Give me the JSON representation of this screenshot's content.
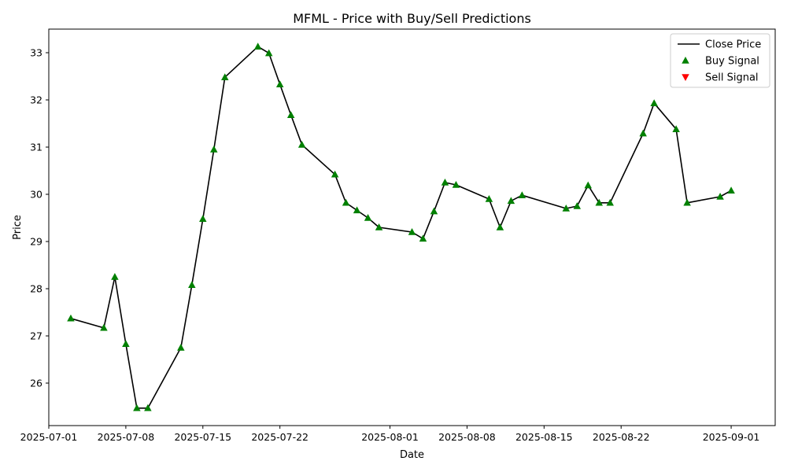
{
  "chart_data": {
    "type": "line",
    "title": "MFML - Price with Buy/Sell Predictions",
    "xlabel": "Date",
    "ylabel": "Price",
    "xlim": [
      "2025-07-01",
      "2025-09-05"
    ],
    "ylim": [
      25.1,
      33.5
    ],
    "grid": false,
    "legend_position": "top-right",
    "x_ticks": [
      "2025-07-01",
      "2025-07-08",
      "2025-07-15",
      "2025-07-22",
      "2025-08-01",
      "2025-08-08",
      "2025-08-15",
      "2025-08-22",
      "2025-09-01"
    ],
    "y_ticks": [
      26,
      27,
      28,
      29,
      30,
      31,
      32,
      33
    ],
    "colors": {
      "close": "#000000",
      "buy": "#008000",
      "sell": "#ff0000"
    },
    "series": [
      {
        "name": "Close Price",
        "kind": "line",
        "points": [
          [
            "2025-07-03",
            27.37
          ],
          [
            "2025-07-06",
            27.17
          ],
          [
            "2025-07-07",
            28.25
          ],
          [
            "2025-07-08",
            26.83
          ],
          [
            "2025-07-09",
            25.47
          ],
          [
            "2025-07-10",
            25.47
          ],
          [
            "2025-07-13",
            26.75
          ],
          [
            "2025-07-14",
            28.08
          ],
          [
            "2025-07-15",
            29.48
          ],
          [
            "2025-07-16",
            30.95
          ],
          [
            "2025-07-17",
            32.48
          ],
          [
            "2025-07-20",
            33.13
          ],
          [
            "2025-07-21",
            32.99
          ],
          [
            "2025-07-22",
            32.33
          ],
          [
            "2025-07-23",
            31.68
          ],
          [
            "2025-07-24",
            31.05
          ],
          [
            "2025-07-27",
            30.42
          ],
          [
            "2025-07-28",
            29.82
          ],
          [
            "2025-07-29",
            29.66
          ],
          [
            "2025-07-30",
            29.5
          ],
          [
            "2025-07-31",
            29.3
          ],
          [
            "2025-08-03",
            29.2
          ],
          [
            "2025-08-04",
            29.06
          ],
          [
            "2025-08-05",
            29.64
          ],
          [
            "2025-08-06",
            30.25
          ],
          [
            "2025-08-07",
            30.2
          ],
          [
            "2025-08-10",
            29.9
          ],
          [
            "2025-08-11",
            29.3
          ],
          [
            "2025-08-12",
            29.86
          ],
          [
            "2025-08-13",
            29.98
          ],
          [
            "2025-08-17",
            29.7
          ],
          [
            "2025-08-18",
            29.75
          ],
          [
            "2025-08-19",
            30.19
          ],
          [
            "2025-08-20",
            29.82
          ],
          [
            "2025-08-21",
            29.82
          ],
          [
            "2025-08-24",
            31.29
          ],
          [
            "2025-08-25",
            31.93
          ],
          [
            "2025-08-27",
            31.38
          ],
          [
            "2025-08-28",
            29.82
          ],
          [
            "2025-08-31",
            29.95
          ],
          [
            "2025-09-01",
            30.08
          ]
        ]
      },
      {
        "name": "Buy Signal",
        "kind": "marker-up",
        "points": [
          [
            "2025-07-03",
            27.37
          ],
          [
            "2025-07-06",
            27.17
          ],
          [
            "2025-07-07",
            28.25
          ],
          [
            "2025-07-08",
            26.83
          ],
          [
            "2025-07-09",
            25.47
          ],
          [
            "2025-07-10",
            25.47
          ],
          [
            "2025-07-13",
            26.75
          ],
          [
            "2025-07-14",
            28.08
          ],
          [
            "2025-07-15",
            29.48
          ],
          [
            "2025-07-16",
            30.95
          ],
          [
            "2025-07-17",
            32.48
          ],
          [
            "2025-07-20",
            33.13
          ],
          [
            "2025-07-21",
            32.99
          ],
          [
            "2025-07-22",
            32.33
          ],
          [
            "2025-07-23",
            31.68
          ],
          [
            "2025-07-24",
            31.05
          ],
          [
            "2025-07-27",
            30.42
          ],
          [
            "2025-07-28",
            29.82
          ],
          [
            "2025-07-29",
            29.66
          ],
          [
            "2025-07-30",
            29.5
          ],
          [
            "2025-07-31",
            29.3
          ],
          [
            "2025-08-03",
            29.2
          ],
          [
            "2025-08-04",
            29.06
          ],
          [
            "2025-08-05",
            29.64
          ],
          [
            "2025-08-06",
            30.25
          ],
          [
            "2025-08-07",
            30.2
          ],
          [
            "2025-08-10",
            29.9
          ],
          [
            "2025-08-11",
            29.3
          ],
          [
            "2025-08-12",
            29.86
          ],
          [
            "2025-08-13",
            29.98
          ],
          [
            "2025-08-17",
            29.7
          ],
          [
            "2025-08-18",
            29.75
          ],
          [
            "2025-08-19",
            30.19
          ],
          [
            "2025-08-20",
            29.82
          ],
          [
            "2025-08-21",
            29.82
          ],
          [
            "2025-08-24",
            31.29
          ],
          [
            "2025-08-25",
            31.93
          ],
          [
            "2025-08-27",
            31.38
          ],
          [
            "2025-08-28",
            29.82
          ],
          [
            "2025-08-31",
            29.95
          ],
          [
            "2025-09-01",
            30.08
          ]
        ]
      },
      {
        "name": "Sell Signal",
        "kind": "marker-down",
        "points": []
      }
    ]
  }
}
